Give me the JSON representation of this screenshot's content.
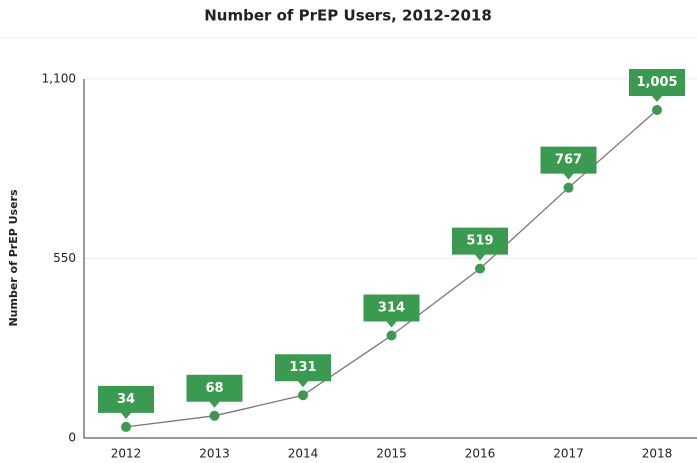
{
  "chart_data": {
    "type": "line",
    "title": "Number of PrEP Users, 2012-2018",
    "y_label": "Number of PrEP Users",
    "categories": [
      "2012",
      "2013",
      "2014",
      "2015",
      "2016",
      "2017",
      "2018"
    ],
    "values": [
      34,
      68,
      131,
      314,
      519,
      767,
      1005
    ],
    "value_labels": [
      "34",
      "68",
      "131",
      "314",
      "519",
      "767",
      "1,005"
    ],
    "color": "#3a9a50",
    "line_color": "#777777",
    "ylim": [
      0,
      1100
    ],
    "yticks": [
      0,
      550,
      {
        "value": 1100,
        "label": "1,100"
      }
    ],
    "grid": true
  }
}
